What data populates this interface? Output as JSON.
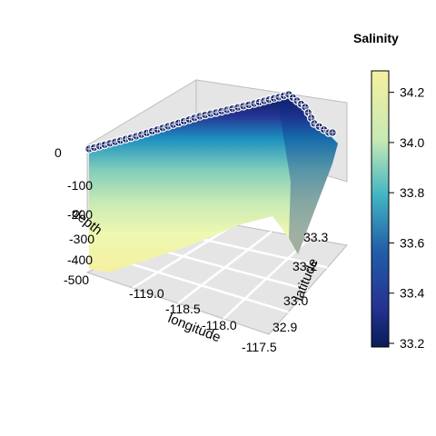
{
  "chart_data": {
    "type": "3d-scatter-curtain",
    "title": "",
    "axes": {
      "x": {
        "label": "longitude",
        "ticks": [
          "-119.0",
          "-118.5",
          "-118.0",
          "-117.5"
        ],
        "range": [
          -119.1,
          -117.4
        ]
      },
      "y": {
        "label": "latitude",
        "ticks": [
          "32.9",
          "33.0",
          "33.2",
          "33.3"
        ],
        "range": [
          32.85,
          33.4
        ]
      },
      "z": {
        "label": "depth",
        "ticks": [
          "0",
          "-100",
          "-200",
          "-300",
          "-400",
          "-500"
        ],
        "range": [
          -500,
          0
        ]
      }
    },
    "color_scale": {
      "title": "Salinity",
      "min": 33.2,
      "max": 34.3,
      "ticks": [
        "33.2",
        "33.4",
        "33.6",
        "33.8",
        "34.0",
        "34.2"
      ],
      "colors": [
        "#081d58",
        "#253494",
        "#225ea8",
        "#1d91c0",
        "#41b6c4",
        "#7fcdbb",
        "#c7e9b4",
        "#edf8b1",
        "#f5f0a0"
      ]
    },
    "depth_profile": [
      {
        "depth": 0,
        "salinity": 33.3
      },
      {
        "depth": -50,
        "salinity": 33.45
      },
      {
        "depth": -100,
        "salinity": 33.7
      },
      {
        "depth": -150,
        "salinity": 33.9
      },
      {
        "depth": -200,
        "salinity": 34.0
      },
      {
        "depth": -250,
        "salinity": 34.1
      },
      {
        "depth": -300,
        "salinity": 34.15
      },
      {
        "depth": -400,
        "salinity": 34.25
      },
      {
        "depth": -500,
        "salinity": 34.3
      }
    ],
    "surface_markers": "white circles with crosshair at each surface sample",
    "panel": {
      "background": "#e5e5e5",
      "grid": true,
      "grid_color": "#ffffff"
    }
  }
}
